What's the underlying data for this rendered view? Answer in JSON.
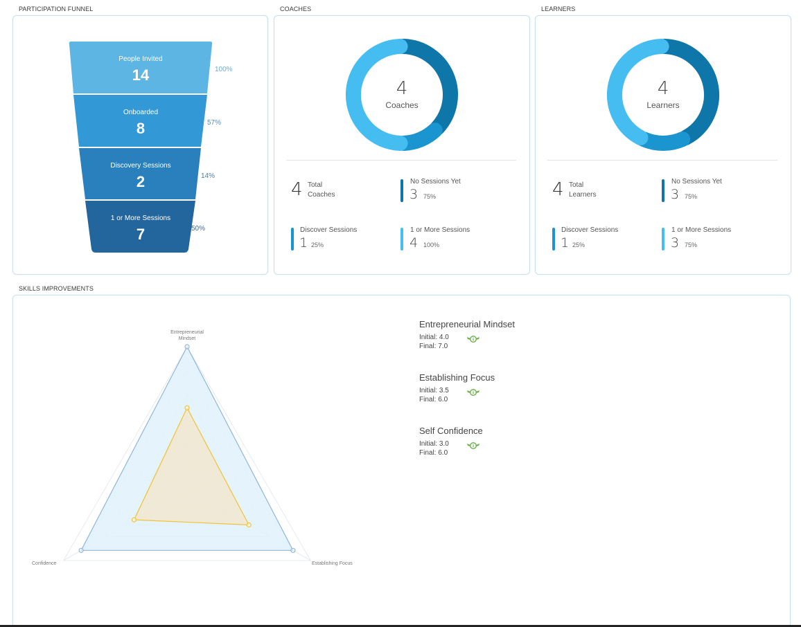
{
  "sections": {
    "funnel_title": "PARTICIPATION FUNNEL",
    "coaches_title": "COACHES",
    "learners_title": "LEARNERS",
    "skills_title": "SKILLS IMPROVEMENTS"
  },
  "funnel": {
    "stages": [
      {
        "label": "People Invited",
        "value": "14",
        "pct": "100%",
        "color": "#5db5e3",
        "pct_color": "#6aaed6"
      },
      {
        "label": "Onboarded",
        "value": "8",
        "pct": "57%",
        "color": "#3399d6",
        "pct_color": "#4f8fbf"
      },
      {
        "label": "Discovery Sessions",
        "value": "2",
        "pct": "14%",
        "color": "#2a80bd",
        "pct_color": "#4a7ea6"
      },
      {
        "label": "1 or More Sessions",
        "value": "7",
        "pct": "50%",
        "color": "#23669e",
        "pct_color": "#3f6b8e"
      }
    ]
  },
  "coaches": {
    "center_number": "4",
    "center_label": "Coaches",
    "total_number": "4",
    "total_label_1": "Total",
    "total_label_2": "Coaches",
    "stats": [
      {
        "label": "No Sessions Yet",
        "value": "3",
        "pct": "75%",
        "color": "#0e76a8"
      },
      {
        "label": "Discover Sessions",
        "value": "1",
        "pct": "25%",
        "color": "#1b95d0"
      },
      {
        "label": "1 or More Sessions",
        "value": "4",
        "pct": "100%",
        "color": "#45bdf0"
      }
    ],
    "segments": [
      3,
      1,
      4
    ]
  },
  "learners": {
    "center_number": "4",
    "center_label": "Learners",
    "total_number": "4",
    "total_label_1": "Total",
    "total_label_2": "Learners",
    "stats": [
      {
        "label": "No Sessions Yet",
        "value": "3",
        "pct": "75%",
        "color": "#0e76a8"
      },
      {
        "label": "Discover Sessions",
        "value": "1",
        "pct": "25%",
        "color": "#1b95d0"
      },
      {
        "label": "1 or More Sessions",
        "value": "3",
        "pct": "75%",
        "color": "#45bdf0"
      }
    ],
    "segments": [
      3,
      1,
      3
    ]
  },
  "skills": {
    "axis_labels": {
      "top_line1": "Entrepreneurial",
      "top_line2": "Mindset",
      "left": "Confidence",
      "right": "Establishing Focus"
    },
    "items": [
      {
        "name": "Entrepreneurial Mindset",
        "initial": "Initial: 4.0",
        "final": "Final: 7.0",
        "icon": "info-badge-icon"
      },
      {
        "name": "Establishing Focus",
        "initial": "Initial: 3.5",
        "final": "Final: 6.0",
        "icon": "info-badge-icon"
      },
      {
        "name": "Self Confidence",
        "initial": "Initial: 3.0",
        "final": "Final: 6.0",
        "icon": "info-badge-icon"
      }
    ],
    "icon_color": "#6bb04a"
  },
  "chart_data": {
    "type": "radar",
    "axes": [
      "Entrepreneurial Mindset",
      "Establishing Focus",
      "Confidence"
    ],
    "series": [
      {
        "name": "Final",
        "values": [
          7.0,
          6.0,
          6.0
        ],
        "color": "#8fb5dc",
        "fill": "#e1f1fc"
      },
      {
        "name": "Initial",
        "values": [
          4.0,
          3.5,
          3.0
        ],
        "color": "#f1c232",
        "fill": "#f1e6cf"
      }
    ],
    "rmax": 7,
    "grid_levels": 6
  }
}
